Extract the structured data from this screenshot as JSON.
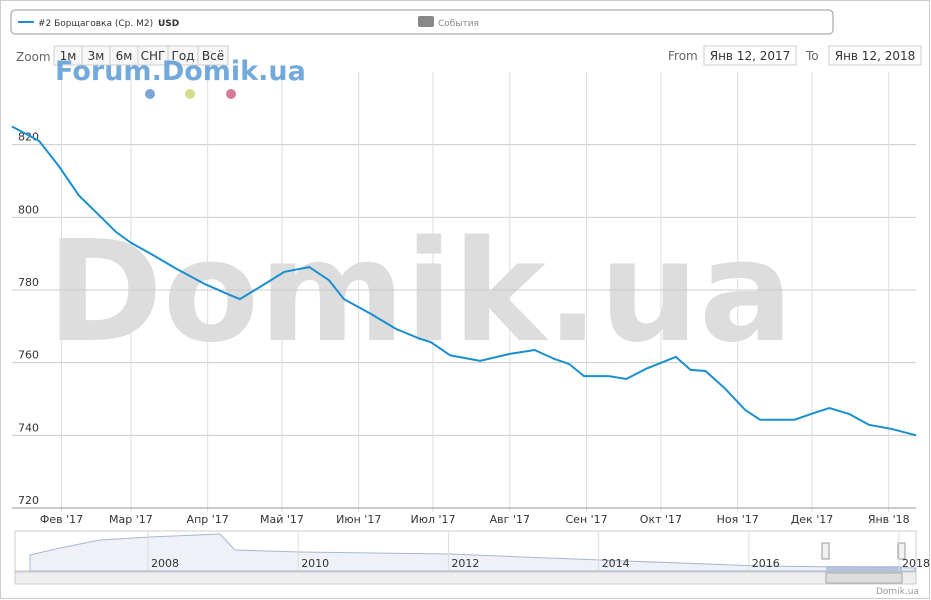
{
  "chart_data": {
    "type": "line",
    "legend": {
      "name": "#2 Борщаговка (Ср. М2)",
      "unit": "USD",
      "events": "События"
    },
    "range_selector": {
      "label": "Zoom",
      "buttons": [
        "1м",
        "3м",
        "6м",
        "СНГ",
        "Год",
        "Всё"
      ],
      "from_label": "From",
      "from": "Янв 12, 2017",
      "to_label": "To",
      "to": "Янв 12, 2018"
    },
    "watermark": "Domik.ua",
    "overlay": "Forum.Domik.ua",
    "credits": "Domik.ua",
    "navigator_years": [
      "2008",
      "2010",
      "2012",
      "2014",
      "2016",
      "2018"
    ],
    "xlim": [
      "2017-01-12",
      "2018-01-12"
    ],
    "xticks": [
      {
        "value": "2017-02-01",
        "label": "Фев '17"
      },
      {
        "value": "2017-03-01",
        "label": "Мар '17"
      },
      {
        "value": "2017-04-01",
        "label": "Апр '17"
      },
      {
        "value": "2017-05-01",
        "label": "Май '17"
      },
      {
        "value": "2017-06-01",
        "label": "Июн '17"
      },
      {
        "value": "2017-07-01",
        "label": "Июл '17"
      },
      {
        "value": "2017-08-01",
        "label": "Авг '17"
      },
      {
        "value": "2017-09-01",
        "label": "Сен '17"
      },
      {
        "value": "2017-10-01",
        "label": "Окт '17"
      },
      {
        "value": "2017-11-01",
        "label": "Ноя '17"
      },
      {
        "value": "2017-12-01",
        "label": "Дек '17"
      },
      {
        "value": "2018-01-01",
        "label": "Янв '18"
      }
    ],
    "ylim": [
      720,
      840
    ],
    "yticks": [
      720,
      740,
      760,
      780,
      800,
      820
    ],
    "grid": true,
    "x": [
      "2017-01-12",
      "2017-01-23",
      "2017-01-31",
      "2017-02-08",
      "2017-02-17",
      "2017-02-23",
      "2017-03-01",
      "2017-03-09",
      "2017-03-19",
      "2017-03-31",
      "2017-04-10",
      "2017-04-14",
      "2017-04-22",
      "2017-05-02",
      "2017-05-12",
      "2017-05-20",
      "2017-05-26",
      "2017-06-06",
      "2017-06-16",
      "2017-06-26",
      "2017-06-30",
      "2017-07-08",
      "2017-07-20",
      "2017-08-01",
      "2017-08-11",
      "2017-08-19",
      "2017-08-25",
      "2017-08-31",
      "2017-09-10",
      "2017-09-17",
      "2017-09-25",
      "2017-10-07",
      "2017-10-13",
      "2017-10-19",
      "2017-10-27",
      "2017-11-04",
      "2017-11-10",
      "2017-11-24",
      "2017-12-02",
      "2017-12-08",
      "2017-12-16",
      "2017-12-24",
      "2018-01-02",
      "2018-01-12"
    ],
    "series": [
      {
        "name": "#2 Борщаговка (Ср. М2)",
        "color": "#1a8fcf",
        "values": [
          825,
          821,
          814,
          806,
          800,
          796,
          793,
          790,
          786,
          781.6,
          778.6,
          777.5,
          780.8,
          785,
          786.3,
          782.7,
          777.5,
          773.4,
          769.3,
          766.5,
          765.7,
          762,
          760.5,
          762.4,
          763.5,
          761,
          759.6,
          756.3,
          756.3,
          755.5,
          758.3,
          761.6,
          758,
          757.7,
          752.8,
          747,
          744.3,
          744.3,
          746.2,
          747.5,
          745.9,
          742.9,
          741.8,
          740
        ]
      }
    ]
  }
}
